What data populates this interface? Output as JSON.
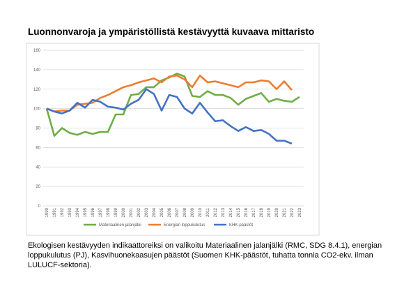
{
  "title": "Luonnonvaroja ja ympäristöllistä kestävyyttä kuvaava mittaristo",
  "chart_data": {
    "type": "line",
    "categories": [
      "1990",
      "1991",
      "1992",
      "1993",
      "1994",
      "1995",
      "1996",
      "1997",
      "1998",
      "1999",
      "2000",
      "2001",
      "2002",
      "2003",
      "2004",
      "2005",
      "2006",
      "2007",
      "2008",
      "2009",
      "2010",
      "2011",
      "2012",
      "2013",
      "2014",
      "2015",
      "2016",
      "2017",
      "2018",
      "2019",
      "2020",
      "2021",
      "2022",
      "2023"
    ],
    "series": [
      {
        "name": "Materiaalinen jalanjälki",
        "color": "#70ad47",
        "values": [
          100,
          72,
          80,
          75,
          73,
          76,
          74,
          76,
          76,
          94,
          94,
          114,
          115,
          122,
          122,
          129,
          132,
          136,
          133,
          113,
          112,
          118,
          114,
          114,
          111,
          104,
          110,
          113,
          116,
          107,
          110,
          108,
          107,
          112
        ]
      },
      {
        "name": "Energian loppukulutus",
        "color": "#ed7d31",
        "values": [
          100,
          97,
          98,
          98,
          104,
          105,
          106,
          111,
          114,
          118,
          122,
          124,
          127,
          129,
          131,
          127,
          133,
          134,
          130,
          122,
          134,
          127,
          128,
          126,
          124,
          122,
          127,
          127,
          129,
          128,
          120,
          128,
          119,
          null
        ]
      },
      {
        "name": "KHK-päästöt",
        "color": "#4472c4",
        "values": [
          100,
          97,
          95,
          98,
          106,
          101,
          109,
          107,
          102,
          101,
          99,
          105,
          109,
          120,
          115,
          98,
          114,
          112,
          100,
          95,
          106,
          96,
          87,
          88,
          82,
          77,
          81,
          77,
          78,
          74,
          67,
          67,
          64,
          null
        ]
      }
    ],
    "ylim": [
      0,
      160
    ],
    "yticks": [
      0,
      20,
      40,
      60,
      80,
      100,
      120,
      140,
      160
    ],
    "grid": true,
    "legend": "bottom"
  },
  "caption": "Ekologisen kestävyyden indikaattoreiksi on valikoitu Materiaalinen jalanjälki (RMC, SDG 8.4.1), energian loppukulutus (PJ), Kasvihuonekaasujen päästöt (Suomen KHK-päästöt, tuhatta tonnia CO2-ekv. ilman LULUCF-sektoria)."
}
